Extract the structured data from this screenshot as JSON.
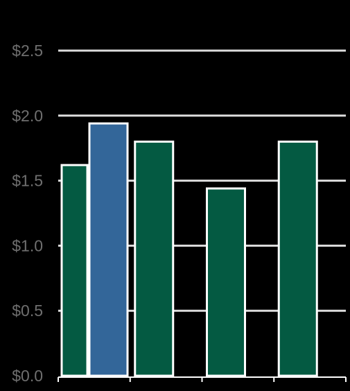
{
  "chart_data": {
    "type": "bar",
    "title": "",
    "xlabel": "",
    "ylabel": "",
    "ylim": [
      0,
      2.5
    ],
    "y_ticks": [
      {
        "value": 0.0,
        "label": "$0.0"
      },
      {
        "value": 0.5,
        "label": "$0.5"
      },
      {
        "value": 1.0,
        "label": "$1.0"
      },
      {
        "value": 1.5,
        "label": "$1.5"
      },
      {
        "value": 2.0,
        "label": "$2.0"
      },
      {
        "value": 2.5,
        "label": "$2.5"
      }
    ],
    "grid": true,
    "legend": "none",
    "bars": [
      {
        "group": 0,
        "value": 1.62,
        "color": "#045a42"
      },
      {
        "group": 0,
        "value": 1.94,
        "color": "#336699"
      },
      {
        "group": 1,
        "value": 1.8,
        "color": "#045a42"
      },
      {
        "group": 2,
        "value": 1.44,
        "color": "#045a42"
      },
      {
        "group": 3,
        "value": 1.8,
        "color": "#045a42"
      }
    ],
    "colors": {
      "background": "#000000",
      "grid": "#dddddd",
      "axis": "#ffffff",
      "tick_label": "#6f6f6f",
      "bar_outline": "#ffffff"
    }
  }
}
